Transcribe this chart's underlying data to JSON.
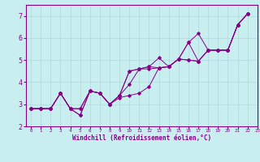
{
  "xlabel": "Windchill (Refroidissement éolien,°C)",
  "background_color": "#c8eef0",
  "grid_color": "#b0d8dc",
  "line_color": "#880088",
  "xlim": [
    -0.5,
    23
  ],
  "ylim": [
    2,
    7.5
  ],
  "yticks": [
    2,
    3,
    4,
    5,
    6,
    7
  ],
  "xticks": [
    0,
    1,
    2,
    3,
    4,
    5,
    6,
    7,
    8,
    9,
    10,
    11,
    12,
    13,
    14,
    15,
    16,
    17,
    18,
    19,
    20,
    21,
    22,
    23
  ],
  "series": [
    [
      2.8,
      2.8,
      2.8,
      3.5,
      2.8,
      2.5,
      3.6,
      3.5,
      3.0,
      3.3,
      3.4,
      3.5,
      3.8,
      4.65,
      4.7,
      5.05,
      5.8,
      6.2,
      5.45,
      5.45,
      5.45,
      6.6,
      7.1
    ],
    [
      2.8,
      2.8,
      2.8,
      3.5,
      2.8,
      2.5,
      3.6,
      3.5,
      3.0,
      3.4,
      3.9,
      4.6,
      4.6,
      4.65,
      4.7,
      5.05,
      5.8,
      4.95,
      5.45,
      5.45,
      5.45,
      6.6,
      7.1
    ],
    [
      2.8,
      2.8,
      2.8,
      3.5,
      2.8,
      2.8,
      3.6,
      3.5,
      3.0,
      3.4,
      4.5,
      4.6,
      4.7,
      4.65,
      4.7,
      5.05,
      5.0,
      4.95,
      5.45,
      5.45,
      5.45,
      6.6,
      7.1
    ],
    [
      2.8,
      2.8,
      2.8,
      3.5,
      2.8,
      2.8,
      3.6,
      3.5,
      3.0,
      3.4,
      4.5,
      4.6,
      4.7,
      5.1,
      4.7,
      5.05,
      5.0,
      4.95,
      5.45,
      5.45,
      5.45,
      6.6,
      7.1
    ]
  ],
  "font_family": "monospace",
  "xlabel_fontsize": 5.5,
  "tick_fontsize_x": 4.2,
  "tick_fontsize_y": 6.0
}
